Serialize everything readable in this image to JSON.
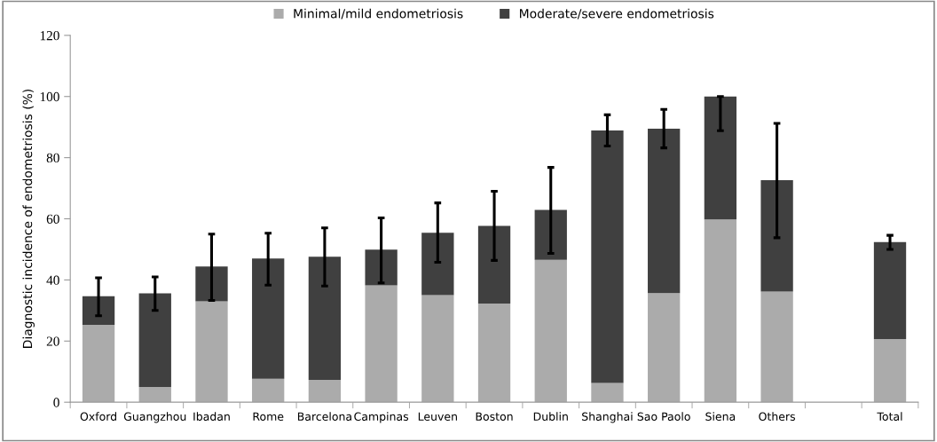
{
  "chart_data": {
    "type": "bar",
    "stacked": true,
    "ylabel": "Diagnostic incidence of endometriosis (%)",
    "categories": [
      "Oxford",
      "Guangzhou",
      "Ibadan",
      "Rome",
      "Barcelona",
      "Campinas",
      "Leuven",
      "Boston",
      "Dublin",
      "Shanghai",
      "Sao Paolo",
      "Siena",
      "Others",
      null,
      "Total"
    ],
    "series": [
      {
        "name": "Minimal/mild endometriosis",
        "color": "#ababab",
        "values": [
          25.3,
          5,
          33,
          7.7,
          7.3,
          38.2,
          35,
          32.3,
          46.6,
          6.3,
          35.7,
          59.8,
          36.2,
          null,
          20.7
        ]
      },
      {
        "name": "Moderate/severe endometriosis",
        "color": "#404040",
        "values": [
          9.4,
          30.6,
          11.4,
          39.3,
          40.3,
          11.7,
          20.4,
          25.4,
          16.3,
          82.6,
          53.8,
          40.2,
          36.4,
          null,
          31.7
        ],
        "errors": [
          [
            28.3,
            40.7
          ],
          [
            30,
            41
          ],
          [
            33.3,
            55
          ],
          [
            38.3,
            55.3
          ],
          [
            38,
            57
          ],
          [
            39,
            60.3
          ],
          [
            45.8,
            65.2
          ],
          [
            46.4,
            69
          ],
          [
            48.7,
            76.8
          ],
          [
            83.8,
            94
          ],
          [
            83.2,
            95.8
          ],
          [
            88.8,
            100
          ],
          [
            53.8,
            91.2
          ],
          null,
          [
            50,
            54.6
          ]
        ]
      }
    ],
    "ylim": [
      0,
      120
    ],
    "yticks": [
      0,
      20,
      40,
      60,
      80,
      100,
      120
    ],
    "grid": false,
    "legend": "top"
  }
}
